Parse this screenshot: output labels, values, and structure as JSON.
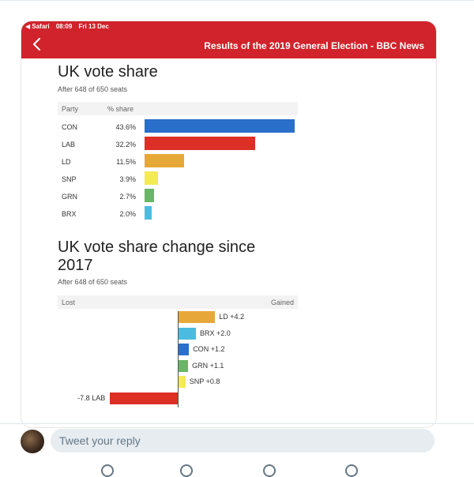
{
  "status_bar": {
    "back_app": "◀ Safari",
    "time": "08:09",
    "date": "Fri 13 Dec"
  },
  "nav": {
    "title": "Results of the 2019 General Election - BBC News",
    "back_icon": "chevron-left-icon"
  },
  "colors": {
    "bbc_red": "#d1232b",
    "CON": "#2a6fc9",
    "LAB": "#dc2f25",
    "LD": "#e7a83a",
    "SNP": "#f4ea56",
    "GRN": "#6ab567",
    "BRX": "#4bbcdf"
  },
  "vote_share": {
    "heading": "UK vote share",
    "subtitle": "After 648 of 650 seats",
    "col_party": "Party",
    "col_share": "% share",
    "rows": [
      {
        "party": "CON",
        "pct_label": "43.6%",
        "value": 43.6
      },
      {
        "party": "LAB",
        "pct_label": "32.2%",
        "value": 32.2
      },
      {
        "party": "LD",
        "pct_label": "11.5%",
        "value": 11.5
      },
      {
        "party": "SNP",
        "pct_label": "3.9%",
        "value": 3.9
      },
      {
        "party": "GRN",
        "pct_label": "2.7%",
        "value": 2.7
      },
      {
        "party": "BRX",
        "pct_label": "2.0%",
        "value": 2.0
      }
    ]
  },
  "share_change": {
    "heading_line1": "UK vote share change since",
    "heading_line2": "2017",
    "subtitle": "After 648 of 650 seats",
    "lost_label": "Lost",
    "gained_label": "Gained",
    "rows": [
      {
        "party": "LD",
        "change_label": "+4.2",
        "value": 4.2
      },
      {
        "party": "BRX",
        "change_label": "+2.0",
        "value": 2.0
      },
      {
        "party": "CON",
        "change_label": "+1.2",
        "value": 1.2
      },
      {
        "party": "GRN",
        "change_label": "+1.1",
        "value": 1.1
      },
      {
        "party": "SNP",
        "change_label": "+0.8",
        "value": 0.8
      },
      {
        "party": "LAB",
        "change_label": "-7.8",
        "value": -7.8
      }
    ]
  },
  "reply": {
    "placeholder": "Tweet your reply"
  }
}
